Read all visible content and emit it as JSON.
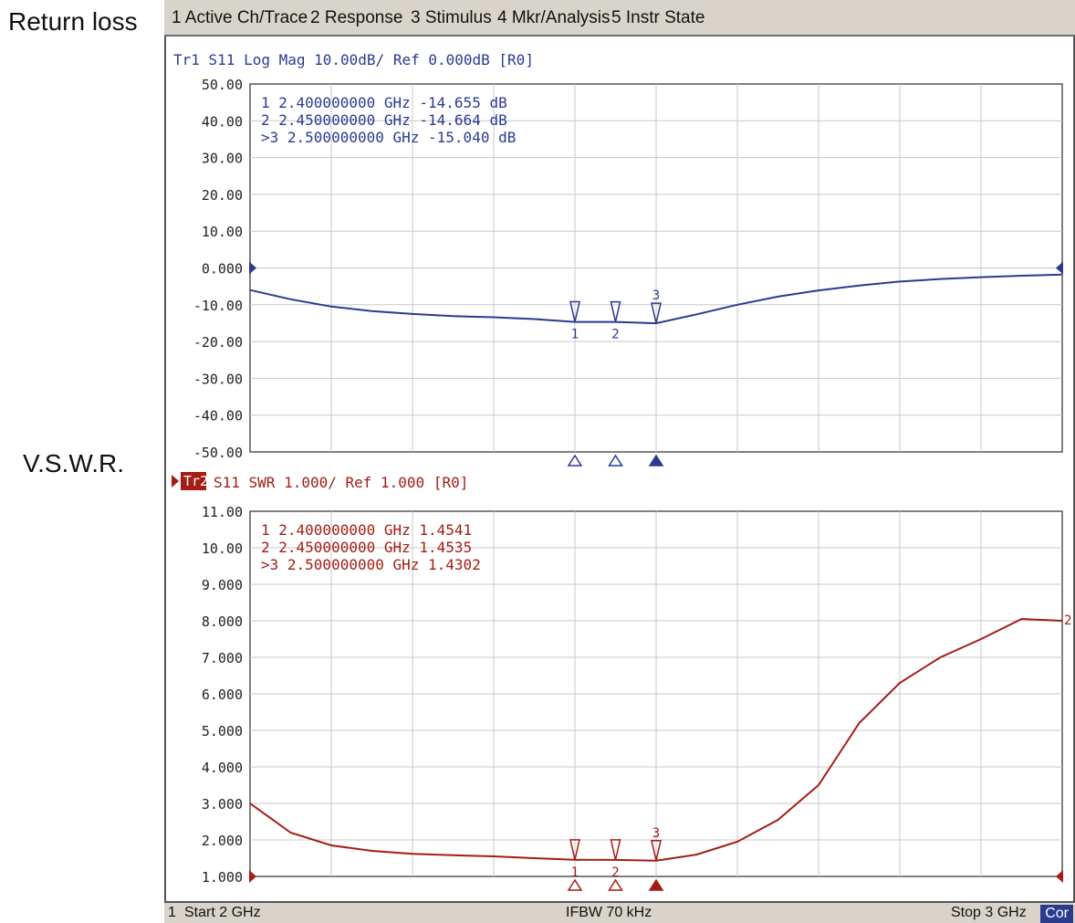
{
  "side_labels": {
    "top": "Return loss",
    "bottom": "V.S.W.R."
  },
  "menu": [
    "1 Active Ch/Trace",
    "2 Response",
    "3 Stimulus",
    "4 Mkr/Analysis",
    "5 Instr State"
  ],
  "colors": {
    "trace1": "#2b3a8f",
    "trace2": "#a31d14",
    "grid": "#c9c9c9",
    "menubar": "#d8d4cb"
  },
  "statusbar": {
    "channel": "1",
    "start": "Start 2 GHz",
    "ifbw": "IFBW 70 kHz",
    "stop": "Stop 3 GHz",
    "correction": "Cor"
  },
  "chart_data": [
    {
      "type": "line",
      "title": "Tr1 S11 Log Mag 10.00dB/ Ref 0.000dB [R0]",
      "xlim": [
        2.0,
        3.0
      ],
      "ylim": [
        -50,
        50
      ],
      "y_ticks": [
        "50.00",
        "40.00",
        "30.00",
        "20.00",
        "10.00",
        "0.000",
        "-10.00",
        "-20.00",
        "-30.00",
        "-40.00",
        "-50.00"
      ],
      "reference_value": 0,
      "series": [
        {
          "x": [
            2.0,
            2.05,
            2.1,
            2.15,
            2.2,
            2.25,
            2.3,
            2.35,
            2.4,
            2.45,
            2.5,
            2.55,
            2.6,
            2.65,
            2.7,
            2.75,
            2.8,
            2.85,
            2.9,
            2.95,
            3.0
          ],
          "y": [
            -6,
            -8.5,
            -10.5,
            -11.7,
            -12.5,
            -13.1,
            -13.4,
            -13.9,
            -14.655,
            -14.664,
            -15.04,
            -12.6,
            -10.0,
            -7.8,
            -6.1,
            -4.8,
            -3.7,
            -3.0,
            -2.5,
            -2.1,
            -1.8
          ]
        }
      ],
      "markers": [
        {
          "id": "1",
          "x": 2.4,
          "y": -14.655,
          "readout": "1   2.400000000 GHz -14.655 dB"
        },
        {
          "id": "2",
          "x": 2.45,
          "y": -14.664,
          "readout": "2   2.450000000 GHz -14.664 dB"
        },
        {
          "id": "3",
          "x": 2.5,
          "y": -15.04,
          "readout": ">3  2.500000000 GHz -15.040 dB",
          "active": true
        }
      ]
    },
    {
      "type": "line",
      "title": "S11 SWR 1.000/ Ref 1.000 [R0]",
      "trace_label": "Tr2",
      "xlim": [
        2.0,
        3.0
      ],
      "ylim": [
        1,
        11
      ],
      "y_ticks": [
        "11.00",
        "10.00",
        "9.000",
        "8.000",
        "7.000",
        "6.000",
        "5.000",
        "4.000",
        "3.000",
        "2.000",
        "1.000"
      ],
      "reference_value": 1,
      "series": [
        {
          "x": [
            2.0,
            2.05,
            2.1,
            2.15,
            2.2,
            2.25,
            2.3,
            2.35,
            2.4,
            2.45,
            2.5,
            2.55,
            2.6,
            2.65,
            2.7,
            2.75,
            2.8,
            2.85,
            2.9,
            2.95,
            3.0
          ],
          "y": [
            3.0,
            2.2,
            1.85,
            1.7,
            1.62,
            1.58,
            1.55,
            1.5,
            1.4541,
            1.4535,
            1.4302,
            1.6,
            1.95,
            2.55,
            3.5,
            5.2,
            6.3,
            7.0,
            7.5,
            8.05,
            8.0
          ]
        }
      ],
      "markers": [
        {
          "id": "1",
          "x": 2.4,
          "y": 1.4541,
          "readout": "1   2.400000000 GHz  1.4541"
        },
        {
          "id": "2",
          "x": 2.45,
          "y": 1.4535,
          "readout": "2   2.450000000 GHz  1.4535"
        },
        {
          "id": "3",
          "x": 2.5,
          "y": 1.4302,
          "readout": ">3  2.500000000 GHz  1.4302",
          "active": true
        }
      ],
      "end_label": "2"
    }
  ]
}
